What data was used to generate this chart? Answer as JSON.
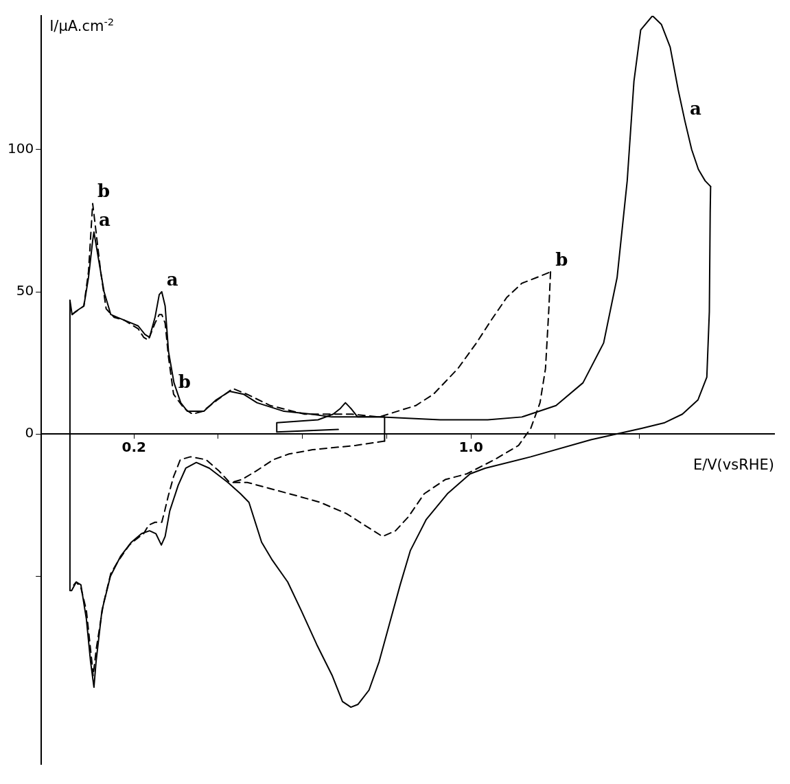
{
  "chart_data": {
    "type": "line",
    "xlabel": "E/V(vsRHE)",
    "ylabel": "I/μA.cm$^{-2}$",
    "xlim": [
      -0.02,
      1.72
    ],
    "ylim": [
      -116,
      147
    ],
    "xticks": [
      0.2,
      {
        "value": 0.4,
        "label": null
      },
      {
        "value": 0.6,
        "label": null
      },
      {
        "value": 0.8,
        "label": null
      },
      {
        "value": 1.0,
        "label": "1.0"
      },
      {
        "value": 1.2,
        "label": null
      },
      {
        "value": 1.4,
        "label": null
      }
    ],
    "yticks": [
      {
        "value": -50,
        "label": null
      },
      0,
      50,
      100
    ],
    "grid": false,
    "legend": false,
    "marker": "none",
    "annotations": [
      {
        "text": "b",
        "x": 0.102,
        "y": 81
      },
      {
        "text": "a",
        "x": 0.105,
        "y": 71
      },
      {
        "text": "a",
        "x": 0.266,
        "y": 50
      },
      {
        "text": "b",
        "x": 0.294,
        "y": 14
      },
      {
        "text": "b",
        "x": 1.189,
        "y": 57
      },
      {
        "text": "a",
        "x": 1.508,
        "y": 110
      }
    ],
    "series": [
      {
        "color": "#000000",
        "line_style": "solid",
        "x": [
          0.048,
          0.053,
          0.061,
          0.081,
          0.092,
          0.102,
          0.105,
          0.113,
          0.129,
          0.145,
          0.161,
          0.194,
          0.21,
          0.226,
          0.237,
          0.25,
          0.26,
          0.266,
          0.274,
          0.282,
          0.295,
          0.311,
          0.327,
          0.366,
          0.395,
          0.427,
          0.46,
          0.492,
          0.556,
          0.621,
          0.669,
          0.782,
          0.927,
          1.04,
          1.121,
          1.202,
          1.266,
          1.315,
          1.347,
          1.371,
          1.387,
          1.403,
          1.431,
          1.452,
          1.473,
          1.492,
          1.508,
          1.524,
          1.54,
          1.556,
          1.569
        ],
        "values": [
          47,
          42,
          43,
          45,
          55,
          68,
          71,
          64,
          50,
          42,
          41,
          39,
          38,
          35,
          34,
          41,
          49,
          50,
          45,
          29,
          18,
          11,
          8,
          8,
          12,
          15,
          14,
          11,
          8,
          7,
          6,
          6,
          5,
          5,
          6,
          10,
          18,
          32,
          55,
          89,
          124,
          142,
          147,
          144,
          136,
          121,
          110,
          100,
          93,
          89,
          87
        ]
      },
      {
        "color": "#000000",
        "line_style": "solid",
        "x": [
          1.569,
          1.568,
          1.566,
          1.56,
          1.539,
          1.502,
          1.46,
          1.405,
          1.285,
          1.142,
          1.034,
          0.998,
          0.944,
          0.894,
          0.856,
          0.832,
          0.806,
          0.782,
          0.758,
          0.732,
          0.715,
          0.695,
          0.671,
          0.634,
          0.597,
          0.565,
          0.527,
          0.503,
          0.473,
          0.453,
          0.423,
          0.379,
          0.348,
          0.323,
          0.305,
          0.285,
          0.274,
          0.265,
          0.252,
          0.237,
          0.218,
          0.194,
          0.168,
          0.144,
          0.124,
          0.11,
          0.105,
          0.097,
          0.087,
          0.074,
          0.063,
          0.052,
          0.048,
          0.048
        ],
        "values": [
          87,
          78,
          43,
          20,
          12,
          7,
          4,
          2,
          -2,
          -8,
          -12,
          -14,
          -21,
          -30,
          -41,
          -53,
          -67,
          -80,
          -90,
          -95,
          -96,
          -94,
          -85,
          -74,
          -62,
          -52,
          -44,
          -38,
          -24,
          -21,
          -17,
          -12,
          -10,
          -12,
          -18,
          -27,
          -36,
          -39,
          -35,
          -34,
          -35,
          -38,
          -43,
          -50,
          -62,
          -80,
          -89,
          -80,
          -65,
          -53,
          -52,
          -55,
          -55,
          47
        ]
      },
      {
        "color": "#000000",
        "line_style": "dashed",
        "x": [
          0.053,
          0.081,
          0.092,
          0.102,
          0.11,
          0.121,
          0.134,
          0.153,
          0.177,
          0.21,
          0.223,
          0.234,
          0.25,
          0.26,
          0.266,
          0.274,
          0.282,
          0.294,
          0.319,
          0.339,
          0.363,
          0.398,
          0.435,
          0.468,
          0.524,
          0.605,
          0.718,
          0.782,
          0.869,
          0.911,
          0.969,
          1.013,
          1.048,
          1.085,
          1.121,
          1.156,
          1.189
        ],
        "values": [
          42,
          45,
          57,
          81,
          71,
          57,
          44,
          41,
          40,
          37,
          34,
          33,
          39,
          42,
          42,
          39,
          27,
          14,
          9,
          7,
          8,
          12,
          16,
          14,
          10,
          7,
          7,
          6,
          10,
          14,
          23,
          32,
          40,
          48,
          53,
          55,
          57
        ]
      },
      {
        "color": "#000000",
        "line_style": "dashed",
        "x": [
          1.189,
          1.185,
          1.177,
          1.164,
          1.142,
          1.113,
          1.056,
          0.99,
          0.939,
          0.889,
          0.852,
          0.821,
          0.79,
          0.747,
          0.705,
          0.642,
          0.594,
          0.519,
          0.469,
          0.427,
          0.402,
          0.371,
          0.334,
          0.31,
          0.294,
          0.281,
          0.273,
          0.266,
          0.25,
          0.235,
          0.223,
          0.205,
          0.189,
          0.161,
          0.145,
          0.127,
          0.111,
          0.103,
          0.1,
          0.087,
          0.074,
          0.063,
          0.052
        ],
        "values": [
          57,
          44,
          23,
          11,
          2,
          -4,
          -9,
          -14,
          -16,
          -21,
          -29,
          -34,
          -36,
          -32,
          -28,
          -24,
          -22,
          -19,
          -17,
          -17,
          -13,
          -9,
          -8,
          -9,
          -15,
          -22,
          -27,
          -31,
          -31,
          -32,
          -35,
          -37,
          -39,
          -45,
          -49,
          -60,
          -75,
          -85,
          -80,
          -62,
          -54,
          -52,
          -54
        ]
      },
      {
        "color": "#000000",
        "line_style": "solid",
        "x": [
          0.685,
          0.539,
          0.539,
          0.637,
          0.673,
          0.69,
          0.702,
          0.715,
          0.731,
          0.758,
          0.795,
          0.795
        ],
        "values": [
          1.6,
          0.7,
          4,
          5,
          7,
          9,
          11,
          9,
          6,
          6,
          6,
          -2.5
        ]
      },
      {
        "color": "#000000",
        "line_style": "dashed",
        "x": [
          0.795,
          0.727,
          0.624,
          0.568,
          0.531,
          0.49,
          0.456,
          0.432
        ],
        "values": [
          -2.5,
          -4,
          -5.5,
          -7,
          -9,
          -13,
          -16,
          -17
        ]
      }
    ]
  }
}
